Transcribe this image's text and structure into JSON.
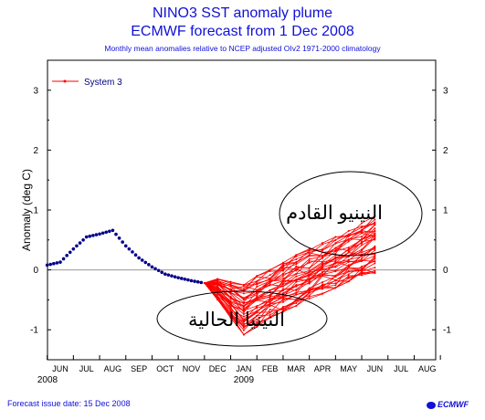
{
  "header": {
    "title_line1": "NINO3 SST anomaly plume",
    "title_line2": "ECMWF forecast from 1 Dec 2008",
    "subtitle": "Monthly mean anomalies relative to NCEP adjusted OIv2 1971-2000 climatology"
  },
  "footer": {
    "issue_date": "Forecast issue date: 15 Dec 2008",
    "logo": "ECMWF"
  },
  "annotations": [
    {
      "text": "النينيو القادم"
    },
    {
      "text": "النينيا الحالية"
    }
  ],
  "colors": {
    "title": "#1010d8",
    "observed": "#00008b",
    "forecast": "#ff0000",
    "zero_line": "#999999"
  },
  "chart_data": {
    "type": "line",
    "ylabel": "Anomaly (deg C)",
    "ylim": [
      -1.5,
      3.5
    ],
    "yticks": [
      -1,
      0,
      1,
      2,
      3
    ],
    "x_categories": [
      "JUN",
      "JUL",
      "AUG",
      "SEP",
      "OCT",
      "NOV",
      "DEC",
      "JAN",
      "FEB",
      "MAR",
      "APR",
      "MAY",
      "JUN",
      "JUL",
      "AUG"
    ],
    "year_labels": [
      {
        "label": "2008",
        "at": "JUN"
      },
      {
        "label": "2009",
        "at": "JAN"
      }
    ],
    "legend": {
      "label": "System 3",
      "position": "top-left"
    },
    "observed": {
      "x": [
        -0.5,
        0,
        0.5,
        1,
        1.5,
        2,
        2.5,
        3,
        3.5,
        4,
        4.5,
        5,
        5.5
      ],
      "y": [
        0.08,
        0.13,
        0.35,
        0.55,
        0.6,
        0.66,
        0.4,
        0.2,
        0.05,
        -0.07,
        -0.13,
        -0.18,
        -0.22
      ]
    },
    "forecast": {
      "x": [
        5.5,
        6,
        6.5,
        7,
        7.5,
        8,
        8.5,
        9,
        9.5,
        10,
        10.5,
        11,
        11.5,
        12
      ],
      "start": -0.22,
      "min_path": [
        -0.22,
        -0.5,
        -0.8,
        -1.08,
        -0.95,
        -0.8,
        -0.7,
        -0.6,
        -0.5,
        -0.4,
        -0.3,
        -0.2,
        -0.1,
        -0.05
      ],
      "max_path": [
        -0.22,
        -0.15,
        -0.2,
        -0.25,
        -0.1,
        0.0,
        0.12,
        0.25,
        0.35,
        0.45,
        0.55,
        0.65,
        0.78,
        0.9
      ],
      "members": 40
    }
  }
}
